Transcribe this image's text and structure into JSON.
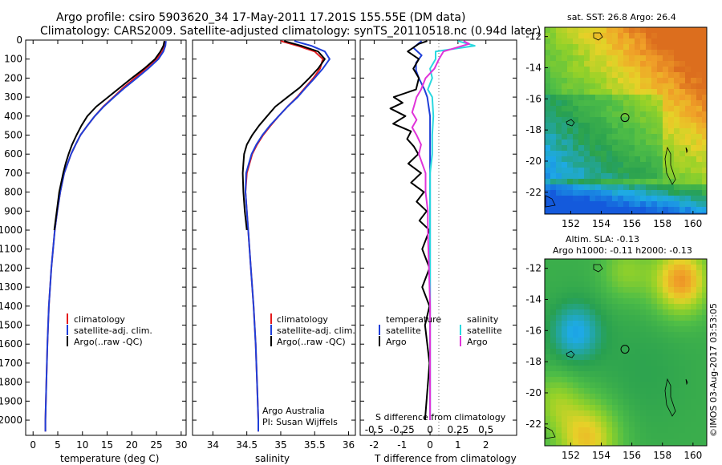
{
  "title_line1": "Argo profile: csiro 5903620_34 17-May-2011 17.201S 155.55E (DM data)",
  "title_line2": "Climatology: CARS2009. Satellite-adjusted climatology: synTS_20110518.nc (0.94d later)",
  "colors": {
    "climatology": "#e41a1c",
    "satellite": "#1f3fd9",
    "argo": "#000000",
    "salinity_sat": "#2ad9e0",
    "salinity_argo": "#e033d9"
  },
  "chart_data": [
    {
      "type": "line",
      "id": "temperature",
      "xlabel": "temperature (deg C)",
      "xlim": [
        -1.5,
        31
      ],
      "xticks": [
        0,
        5,
        10,
        15,
        20,
        25,
        30
      ],
      "ylim": [
        2080,
        0
      ],
      "yticks": [
        0,
        100,
        200,
        300,
        400,
        500,
        600,
        700,
        800,
        900,
        1000,
        1100,
        1200,
        1300,
        1400,
        1500,
        1600,
        1700,
        1800,
        1900,
        2000
      ],
      "legend": [
        "climatology",
        "satellite-adj. clim.",
        "Argo(..raw -QC)"
      ],
      "series": [
        {
          "name": "climatology",
          "depth": [
            5,
            30,
            60,
            100,
            150,
            200,
            250,
            300,
            350,
            400,
            450,
            500,
            550,
            600,
            700,
            800,
            900,
            1000,
            1200,
            1400,
            1600,
            1800,
            2000,
            2060
          ],
          "values": [
            26.7,
            26.6,
            26.2,
            25.0,
            22.8,
            20.6,
            18.3,
            16.3,
            14.2,
            12.5,
            11.0,
            9.6,
            8.6,
            7.7,
            6.3,
            5.5,
            4.9,
            4.4,
            3.7,
            3.2,
            2.9,
            2.7,
            2.5,
            2.5
          ]
        },
        {
          "name": "satellite-adj. clim.",
          "depth": [
            5,
            30,
            60,
            100,
            150,
            200,
            250,
            300,
            350,
            400,
            450,
            500,
            550,
            600,
            700,
            800,
            900,
            1000,
            1200,
            1400,
            1600,
            1800,
            2000,
            2060
          ],
          "values": [
            26.9,
            26.8,
            26.4,
            25.4,
            23.3,
            21.0,
            18.6,
            16.4,
            14.3,
            12.5,
            11.0,
            9.6,
            8.6,
            7.7,
            6.3,
            5.5,
            4.9,
            4.4,
            3.7,
            3.2,
            2.9,
            2.7,
            2.5,
            2.5
          ]
        },
        {
          "name": "Argo(..raw -QC)",
          "depth": [
            5,
            30,
            60,
            100,
            150,
            200,
            250,
            300,
            350,
            400,
            450,
            500,
            550,
            600,
            650,
            700,
            800,
            900,
            1000
          ],
          "values": [
            26.6,
            26.4,
            25.8,
            24.7,
            22.5,
            20.0,
            17.6,
            15.2,
            12.8,
            11.0,
            9.8,
            8.8,
            7.9,
            7.2,
            6.6,
            6.1,
            5.3,
            4.8,
            4.3
          ]
        }
      ]
    },
    {
      "type": "line",
      "id": "salinity",
      "xlabel": "salinity",
      "xlim": [
        33.7,
        36.1
      ],
      "xticks": [
        34,
        34.5,
        35,
        35.5,
        36
      ],
      "ylim": [
        2080,
        0
      ],
      "legend": [
        "climatology",
        "satellite-adj. clim.",
        "Argo(..raw -QC)"
      ],
      "annotation": [
        "Argo Australia",
        "PI: Susan Wijffels"
      ],
      "series": [
        {
          "name": "climatology",
          "depth": [
            5,
            30,
            60,
            100,
            150,
            200,
            250,
            300,
            350,
            400,
            450,
            500,
            550,
            600,
            700,
            800,
            900,
            1000,
            1200,
            1400,
            1600,
            1800,
            2000,
            2060
          ],
          "values": [
            35.0,
            35.25,
            35.5,
            35.62,
            35.58,
            35.48,
            35.36,
            35.24,
            35.1,
            34.97,
            34.85,
            34.74,
            34.65,
            34.58,
            34.5,
            34.48,
            34.5,
            34.52,
            34.56,
            34.6,
            34.63,
            34.65,
            34.67,
            34.67
          ]
        },
        {
          "name": "satellite-adj. clim.",
          "depth": [
            5,
            30,
            60,
            100,
            150,
            200,
            250,
            300,
            350,
            400,
            450,
            500,
            550,
            600,
            700,
            800,
            900,
            1000,
            1200,
            1400,
            1600,
            1800,
            2000,
            2060
          ],
          "values": [
            35.2,
            35.45,
            35.65,
            35.72,
            35.62,
            35.5,
            35.37,
            35.25,
            35.1,
            34.97,
            34.84,
            34.73,
            34.64,
            34.57,
            34.49,
            34.48,
            34.5,
            34.52,
            34.56,
            34.6,
            34.63,
            34.65,
            34.67,
            34.67
          ]
        },
        {
          "name": "Argo(..raw -QC)",
          "depth": [
            5,
            30,
            60,
            100,
            150,
            200,
            250,
            300,
            350,
            400,
            450,
            500,
            550,
            600,
            650,
            700,
            800,
            900,
            1000
          ],
          "values": [
            35.05,
            35.3,
            35.55,
            35.65,
            35.55,
            35.42,
            35.28,
            35.1,
            34.92,
            34.8,
            34.68,
            34.58,
            34.5,
            34.46,
            34.45,
            34.44,
            34.45,
            34.47,
            34.5
          ]
        }
      ]
    },
    {
      "type": "line",
      "id": "differences",
      "xlabel": "T difference from climatology",
      "xlabel2": "S difference from climatology",
      "xlim": [
        -2.5,
        3.1
      ],
      "xticks": [
        -2,
        -1,
        0,
        1,
        2
      ],
      "xticks_s": [
        "-0.5",
        "-0.25",
        "0",
        "0.25",
        "0.5"
      ],
      "ylim": [
        2080,
        0
      ],
      "legend_temperature": [
        "temperature",
        "satellite",
        "Argo"
      ],
      "legend_salinity": [
        "salinity",
        "satellite",
        "Argo"
      ],
      "series": [
        {
          "name": "temperature satellite",
          "depth": [
            5,
            40,
            80,
            120,
            160,
            200,
            260,
            300,
            400,
            500,
            600,
            800,
            1000,
            1400,
            2000
          ],
          "values": [
            -0.3,
            -0.6,
            -0.3,
            -0.5,
            -0.5,
            -0.4,
            -0.2,
            -0.1,
            0.0,
            0.0,
            0.0,
            0.0,
            0.0,
            0.0,
            0.0
          ]
        },
        {
          "name": "temperature Argo",
          "depth": [
            5,
            20,
            60,
            100,
            150,
            200,
            260,
            300,
            330,
            360,
            400,
            440,
            480,
            520,
            560,
            600,
            650,
            700,
            750,
            800,
            850,
            900,
            950,
            1000,
            1100,
            1200,
            1300,
            1400,
            1500,
            1700,
            2000
          ],
          "values": [
            -0.1,
            -0.4,
            -0.8,
            -0.4,
            -0.6,
            -0.4,
            -0.5,
            -1.3,
            -0.9,
            -1.5,
            -0.8,
            -1.4,
            -0.6,
            -0.9,
            -0.5,
            -0.5,
            -0.7,
            -0.4,
            -0.6,
            -0.3,
            -0.4,
            -0.2,
            -0.3,
            -0.1,
            -0.2,
            -0.1,
            -0.2,
            -0.1,
            -0.1,
            -0.1,
            -0.1
          ]
        },
        {
          "name": "salinity satellite",
          "depth": [
            5,
            30,
            60,
            100,
            150,
            200,
            260,
            300,
            400,
            500,
            600,
            700,
            800,
            1000,
            1400,
            2000
          ],
          "values": [
            0.25,
            0.4,
            0.05,
            0.05,
            0.0,
            0.02,
            -0.02,
            0.02,
            0.03,
            0.02,
            0.02,
            0.0,
            0.0,
            0.0,
            0.0,
            0.0
          ]
        },
        {
          "name": "salinity Argo",
          "depth": [
            5,
            20,
            60,
            100,
            150,
            200,
            260,
            300,
            340,
            380,
            420,
            460,
            500,
            550,
            600,
            700,
            800,
            900,
            1000,
            1200,
            1400,
            1600,
            1800,
            2000
          ],
          "values": [
            0.3,
            0.35,
            0.12,
            0.08,
            0.04,
            -0.04,
            -0.08,
            -0.12,
            -0.14,
            -0.16,
            -0.12,
            -0.16,
            -0.12,
            -0.08,
            -0.1,
            -0.04,
            -0.04,
            -0.02,
            -0.02,
            -0.01,
            0.0,
            0.0,
            0.0,
            0.0
          ]
        }
      ]
    },
    {
      "type": "heatmap",
      "id": "sst_map",
      "title": "sat. SST: 26.8  Argo: 26.4",
      "xlim": [
        150.3,
        160.9
      ],
      "ylim": [
        -23.4,
        -11.4
      ],
      "xticks": [
        152,
        154,
        156,
        158,
        160
      ],
      "yticks": [
        -12,
        -14,
        -16,
        -18,
        -20,
        -22
      ],
      "profile_location": [
        155.55,
        -17.2
      ]
    },
    {
      "type": "heatmap",
      "id": "sla_map",
      "title1": "Altim. SLA: -0.13",
      "title2": "Argo h1000: -0.11  h2000: -0.13",
      "xlim": [
        150.3,
        160.9
      ],
      "ylim": [
        -23.4,
        -11.4
      ],
      "xticks": [
        152,
        154,
        156,
        158,
        160
      ],
      "yticks": [
        -12,
        -14,
        -16,
        -18,
        -20,
        -22
      ],
      "profile_location": [
        155.55,
        -17.2
      ]
    }
  ],
  "footer_rotated": "©IMOS 03-Aug-2017 03:53:05"
}
